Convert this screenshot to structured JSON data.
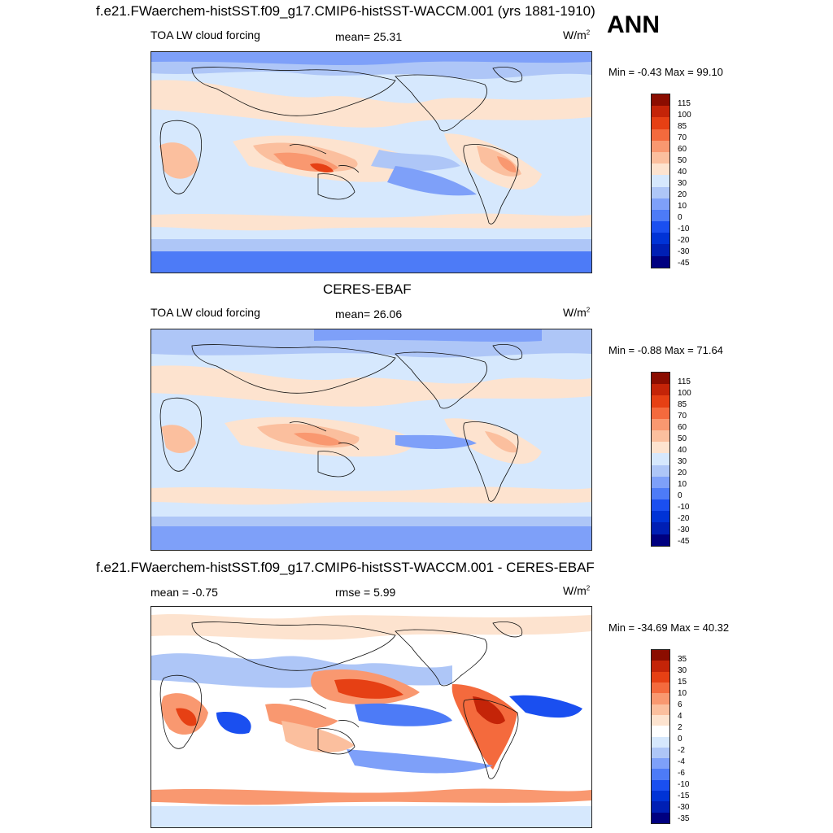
{
  "season": "ANN",
  "palettes": {
    "main": [
      "#000080",
      "#001fb4",
      "#0033d6",
      "#1a4ff0",
      "#4d7bf7",
      "#7ea0f9",
      "#aec6f7",
      "#d6e8fd",
      "#fde3cf",
      "#fbbf9e",
      "#f99870",
      "#f46a3d",
      "#e64014",
      "#c42408",
      "#8b0d00"
    ],
    "diff": [
      "#000080",
      "#001fb4",
      "#0033d6",
      "#1a4ff0",
      "#4d7bf7",
      "#7ea0f9",
      "#aec6f7",
      "#d6e8fd",
      "#ffffff",
      "#fde3cf",
      "#fbbf9e",
      "#f99870",
      "#f46a3d",
      "#e64014",
      "#c42408",
      "#8b0d00"
    ]
  },
  "panels": [
    {
      "title": "f.e21.FWaerchem-histSST.f09_g17.CMIP6-histSST-WACCM.001 (yrs 1881-1910)",
      "left_label": "TOA LW cloud forcing",
      "center_label": "mean=  25.31",
      "units": "W/m",
      "units_sup": "2",
      "minmax": "Min =  -0.43 Max =  99.10",
      "colorbar_labels": [
        "115",
        "100",
        "85",
        "70",
        "60",
        "50",
        "40",
        "30",
        "20",
        "10",
        "0",
        "-10",
        "-20",
        "-30",
        "-45"
      ],
      "palette": "main",
      "background_level": 7
    },
    {
      "title": "CERES-EBAF",
      "left_label": "TOA LW cloud forcing",
      "center_label": "mean=  26.06",
      "units": "W/m",
      "units_sup": "2",
      "minmax": "Min =  -0.88 Max =  71.64",
      "colorbar_labels": [
        "115",
        "100",
        "85",
        "70",
        "60",
        "50",
        "40",
        "30",
        "20",
        "10",
        "0",
        "-10",
        "-20",
        "-30",
        "-45"
      ],
      "palette": "main",
      "background_level": 7
    },
    {
      "title": "f.e21.FWaerchem-histSST.f09_g17.CMIP6-histSST-WACCM.001 - CERES-EBAF",
      "left_label": "mean =  -0.75",
      "center_label": "rmse =   5.99",
      "units": "W/m",
      "units_sup": "2",
      "minmax": "Min = -34.69 Max =  40.32",
      "colorbar_labels": [
        "35",
        "30",
        "15",
        "10",
        "6",
        "4",
        "2",
        "0",
        "-2",
        "-4",
        "-6",
        "-10",
        "-15",
        "-30",
        "-35"
      ],
      "palette": "diff",
      "background_level": 8
    }
  ]
}
